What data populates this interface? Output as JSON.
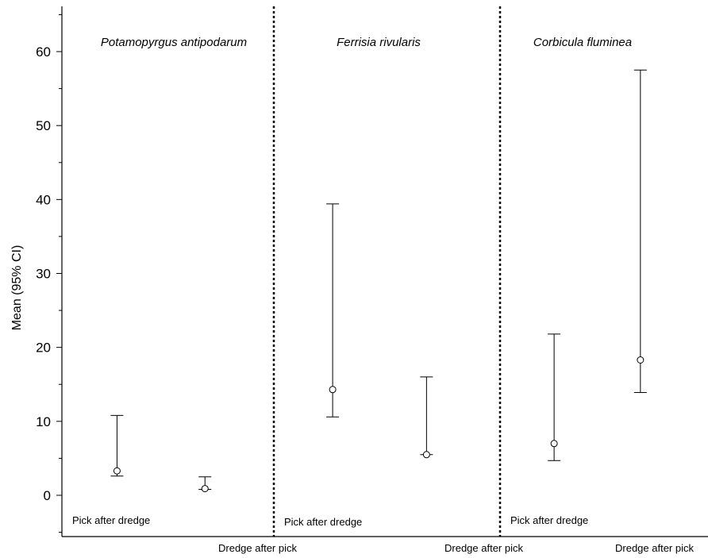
{
  "chart_data": {
    "type": "error-bar",
    "ylabel": "Mean (95% CI)",
    "ylim": [
      -5,
      66
    ],
    "yticks": [
      0,
      10,
      20,
      30,
      40,
      50,
      60
    ],
    "yticks_labels": [
      "0",
      "10",
      "20",
      "30",
      "40",
      "50",
      "60"
    ],
    "categories": [
      "Pick after dredge",
      "Dredge after pick"
    ],
    "panels": [
      {
        "title": "Potamopyrgus antipodarum",
        "points": [
          {
            "category": "Pick after dredge",
            "mean": 3.3,
            "lower": 2.6,
            "upper": 10.8
          },
          {
            "category": "Dredge after pick",
            "mean": 0.9,
            "lower": 0.8,
            "upper": 2.5
          }
        ]
      },
      {
        "title": "Ferrisia rivularis",
        "points": [
          {
            "category": "Pick after dredge",
            "mean": 14.3,
            "lower": 10.6,
            "upper": 39.4
          },
          {
            "category": "Dredge after pick",
            "mean": 5.5,
            "lower": 5.5,
            "upper": 16.0
          }
        ]
      },
      {
        "title": "Corbicula fluminea",
        "points": [
          {
            "category": "Pick after dredge",
            "mean": 7.0,
            "lower": 4.7,
            "upper": 21.8
          },
          {
            "category": "Dredge after pick",
            "mean": 18.3,
            "lower": 13.9,
            "upper": 57.5
          }
        ]
      }
    ]
  }
}
